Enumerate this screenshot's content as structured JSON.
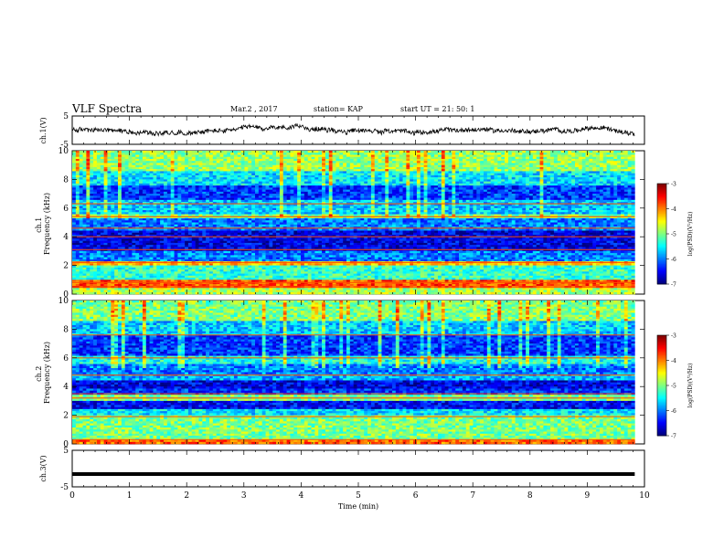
{
  "header": {
    "title": "VLF Spectra",
    "date": "Mar.2 , 2017",
    "station": "station= KAP",
    "start": "start UT =  21: 50: 1"
  },
  "chart_data": [
    {
      "type": "line",
      "panel": "ch1-waveform",
      "ylabel": "ch.1(V)",
      "ylim": [
        -5,
        5
      ],
      "yticks": [
        -5,
        5
      ],
      "xlim": [
        0,
        10
      ],
      "series": [
        {
          "description": "noisy waveform",
          "baseline_v": 0,
          "amplitude_v": 1.5,
          "color": "#000000"
        }
      ]
    },
    {
      "type": "heatmap",
      "panel": "ch1-spectrogram",
      "ylabel": "ch.1\nFrequency (kHz)",
      "ylim": [
        0,
        10
      ],
      "yticks": [
        0,
        2,
        4,
        6,
        8,
        10
      ],
      "xlim": [
        0,
        10
      ],
      "colorbar": {
        "label": "log(PSD)(V²/Hz)",
        "range": [
          -7,
          -3
        ],
        "ticks": [
          -7,
          -6,
          -5,
          -4,
          -3
        ]
      },
      "bands": [
        {
          "f": [
            0.0,
            0.4
          ],
          "level": -4.8
        },
        {
          "f": [
            0.4,
            1.0
          ],
          "level": -3.8
        },
        {
          "f": [
            1.0,
            2.0
          ],
          "level": -5.3
        },
        {
          "f": [
            2.0,
            2.3
          ],
          "level": -4.2
        },
        {
          "f": [
            2.3,
            3.0
          ],
          "level": -6.0
        },
        {
          "f": [
            3.0,
            4.5
          ],
          "level": -6.6
        },
        {
          "f": [
            4.5,
            5.3
          ],
          "level": -6.0
        },
        {
          "f": [
            5.3,
            5.6
          ],
          "level": -5.0
        },
        {
          "f": [
            5.6,
            6.6
          ],
          "level": -5.7
        },
        {
          "f": [
            6.6,
            7.6
          ],
          "level": -6.3
        },
        {
          "f": [
            7.6,
            8.6
          ],
          "level": -5.6
        },
        {
          "f": [
            8.6,
            10.0
          ],
          "level": -4.9
        }
      ],
      "lines_khz": [
        0.5,
        0.8,
        2.2,
        3.1,
        4.0,
        4.6,
        5.4,
        6.3
      ]
    },
    {
      "type": "heatmap",
      "panel": "ch2-spectrogram",
      "ylabel": "ch.2\nFrequency (kHz)",
      "ylim": [
        0,
        10
      ],
      "yticks": [
        0,
        2,
        4,
        6,
        8,
        10
      ],
      "xlim": [
        0,
        10
      ],
      "colorbar": {
        "label": "log(PSD)(V²/Hz)",
        "range": [
          -7,
          -3
        ],
        "ticks": [
          -7,
          -6,
          -5,
          -4,
          -3
        ]
      },
      "bands": [
        {
          "f": [
            0.0,
            0.3
          ],
          "level": -3.9
        },
        {
          "f": [
            0.3,
            2.0
          ],
          "level": -5.0
        },
        {
          "f": [
            2.0,
            2.5
          ],
          "level": -5.6
        },
        {
          "f": [
            2.5,
            3.0
          ],
          "level": -6.5
        },
        {
          "f": [
            3.0,
            3.5
          ],
          "level": -5.0
        },
        {
          "f": [
            3.5,
            3.8
          ],
          "level": -6.3
        },
        {
          "f": [
            3.8,
            4.4
          ],
          "level": -6.6
        },
        {
          "f": [
            4.4,
            4.8
          ],
          "level": -5.8
        },
        {
          "f": [
            4.8,
            5.6
          ],
          "level": -6.0
        },
        {
          "f": [
            5.6,
            6.2
          ],
          "level": -5.4
        },
        {
          "f": [
            6.2,
            7.6
          ],
          "level": -6.3
        },
        {
          "f": [
            7.6,
            8.6
          ],
          "level": -5.7
        },
        {
          "f": [
            8.6,
            10.0
          ],
          "level": -5.0
        }
      ],
      "lines_khz": [
        0.3,
        1.9,
        3.2,
        3.5,
        4.8,
        6.0,
        7.6
      ]
    },
    {
      "type": "line",
      "panel": "ch3-waveform",
      "ylabel": "ch.3(V)",
      "ylim": [
        -5,
        5
      ],
      "yticks": [
        -5,
        5
      ],
      "xlim": [
        0,
        10
      ],
      "xlabel": "Time (min)",
      "xticks": [
        0,
        1,
        2,
        3,
        4,
        5,
        6,
        7,
        8,
        9,
        10
      ],
      "series": [
        {
          "description": "flat thick line",
          "baseline_v": -1.5,
          "color": "#000000"
        }
      ]
    }
  ]
}
